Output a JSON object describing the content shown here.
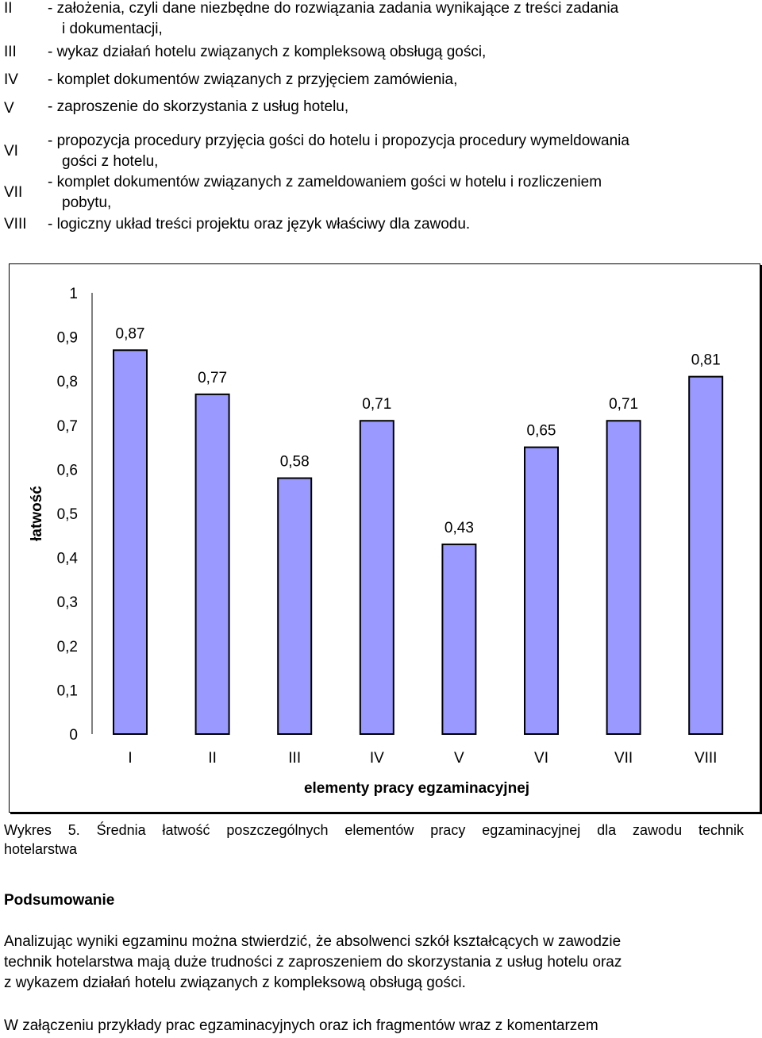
{
  "list": [
    {
      "num": "II",
      "lines": [
        "- założenia, czyli dane niezbędne do rozwiązania zadania wynikające z treści zadania",
        "i dokumentacji,"
      ]
    },
    {
      "num": "III",
      "lines": [
        "- wykaz działań hotelu związanych z kompleksową obsługą gości,"
      ]
    },
    {
      "num": "IV",
      "lines": [
        "- komplet dokumentów związanych z przyjęciem zamówienia,"
      ]
    },
    {
      "num": "V",
      "lines": [
        "- zaproszenie do skorzystania z usług hotelu,"
      ]
    },
    {
      "num": "VI",
      "lines": [
        "- propozycja procedury przyjęcia gości do hotelu i propozycja procedury wymeldowania",
        "gości z hotelu,"
      ]
    },
    {
      "num": "VII",
      "lines": [
        "- komplet dokumentów związanych z zameldowaniem gości w hotelu i rozliczeniem",
        "pobytu,"
      ]
    },
    {
      "num": "VIII",
      "lines": [
        "- logiczny układ treści projektu oraz język właściwy dla zawodu."
      ]
    }
  ],
  "chart_data": {
    "type": "bar",
    "categories": [
      "I",
      "II",
      "III",
      "IV",
      "V",
      "VI",
      "VII",
      "VIII"
    ],
    "values": [
      0.87,
      0.77,
      0.58,
      0.71,
      0.43,
      0.65,
      0.71,
      0.81
    ],
    "value_labels": [
      "0,87",
      "0,77",
      "0,58",
      "0,71",
      "0,43",
      "0,65",
      "0,71",
      "0,81"
    ],
    "title": "",
    "xlabel": "elementy pracy egzaminacyjnej",
    "ylabel": "łatwość",
    "ylim": [
      0,
      1
    ],
    "yticks": [
      0,
      0.1,
      0.2,
      0.3,
      0.4,
      0.5,
      0.6,
      0.7,
      0.8,
      0.9,
      1
    ],
    "ytick_labels": [
      "0",
      "0,1",
      "0,2",
      "0,3",
      "0,4",
      "0,5",
      "0,6",
      "0,7",
      "0,8",
      "0,9",
      "1"
    ],
    "grid": false,
    "legend": "none",
    "bar_color": "#9999ff"
  },
  "caption": {
    "line1": "Wykres 5. Średnia łatwość poszczególnych elementów pracy egzaminacyjnej dla zawodu technik",
    "line2": "hotelarstwa"
  },
  "summary": {
    "heading": "Podsumowanie",
    "paragraph1": [
      "Analizując wyniki egzaminu można stwierdzić, że absolwenci szkół kształcących w zawodzie",
      "technik hotelarstwa mają duże trudności z zaproszeniem do skorzystania z usług hotelu oraz",
      "z wykazem działań hotelu związanych z kompleksową obsługą gości."
    ],
    "paragraph2": "W załączeniu przykłady prac egzaminacyjnych oraz ich fragmentów wraz z komentarzem"
  }
}
